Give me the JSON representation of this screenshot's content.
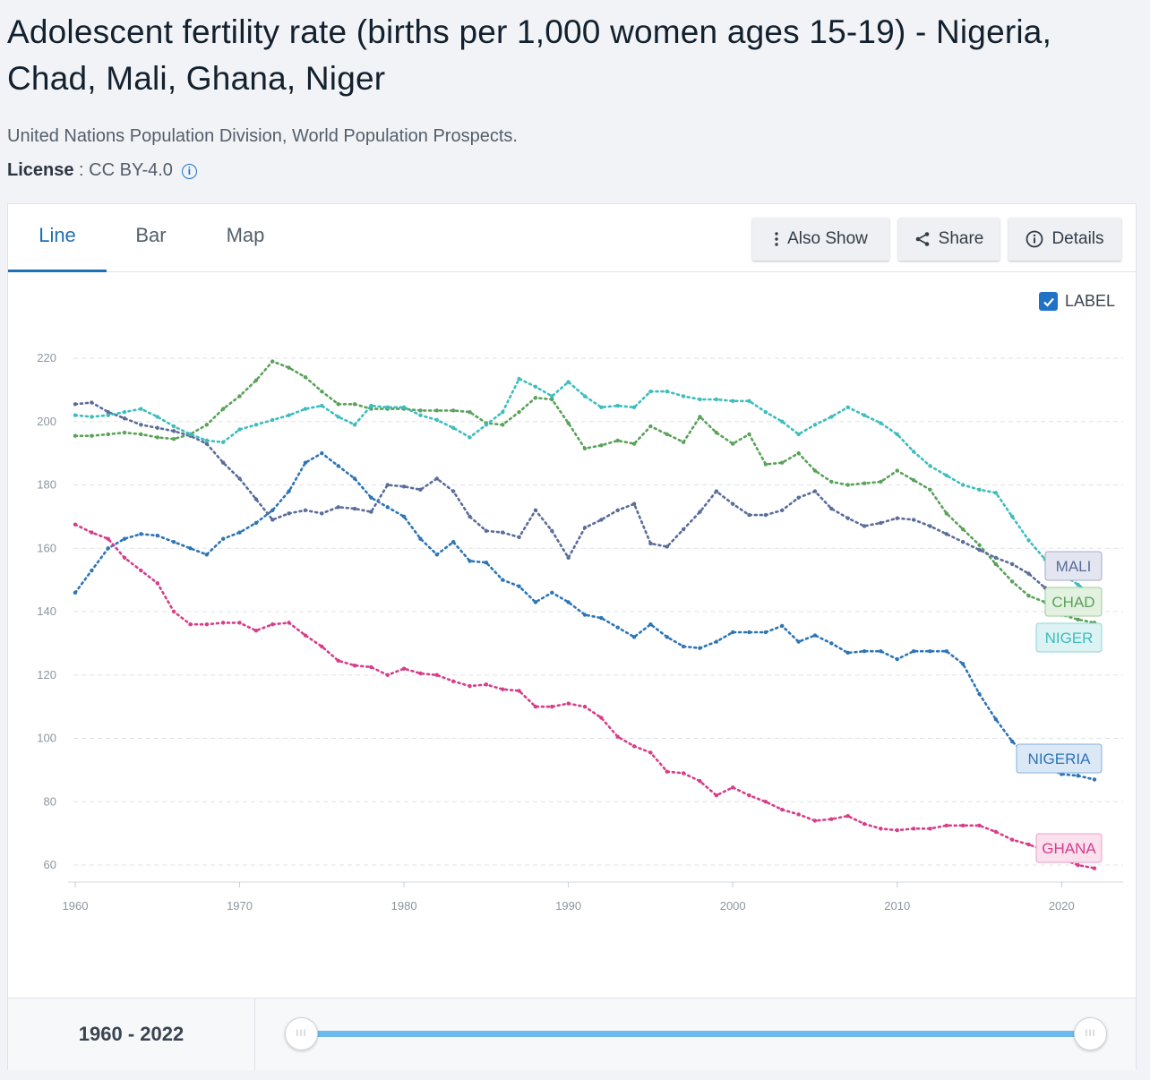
{
  "header": {
    "title": "Adolescent fertility rate (births per 1,000 women ages 15-19) - Nigeria, Chad, Mali, Ghana, Niger",
    "source": "United Nations Population Division, World Population Prospects.",
    "license_label": "License",
    "license_sep": " : ",
    "license_value": "CC BY-4.0"
  },
  "tabs": [
    {
      "label": "Line",
      "active": true
    },
    {
      "label": "Bar",
      "active": false
    },
    {
      "label": "Map",
      "active": false
    }
  ],
  "toolbar": {
    "also_show": "Also Show",
    "share": "Share",
    "details": "Details"
  },
  "label_toggle": {
    "text": "LABEL",
    "checked": true
  },
  "range": {
    "start": "1960",
    "end": "2022",
    "sep": " - "
  },
  "chart_data": {
    "type": "line",
    "title": "",
    "xlabel": "",
    "ylabel": "",
    "xlim": [
      1960,
      2022
    ],
    "ylim": [
      55,
      225
    ],
    "xticks": [
      1960,
      1970,
      1980,
      1990,
      2000,
      2010,
      2020
    ],
    "yticks": [
      60,
      80,
      100,
      120,
      140,
      160,
      180,
      200,
      220
    ],
    "grid": true,
    "line_style": "dotted",
    "series": [
      {
        "name": "NIGERIA",
        "color": "#2e75b6",
        "x": [
          1960,
          1961,
          1962,
          1963,
          1964,
          1965,
          1966,
          1967,
          1968,
          1969,
          1970,
          1971,
          1972,
          1973,
          1974,
          1975,
          1976,
          1977,
          1978,
          1979,
          1980,
          1981,
          1982,
          1983,
          1984,
          1985,
          1986,
          1987,
          1988,
          1989,
          1990,
          1991,
          1992,
          1993,
          1994,
          1995,
          1996,
          1997,
          1998,
          1999,
          2000,
          2001,
          2002,
          2003,
          2004,
          2005,
          2006,
          2007,
          2008,
          2009,
          2010,
          2011,
          2012,
          2013,
          2014,
          2015,
          2016,
          2017,
          2018,
          2019,
          2020,
          2021,
          2022
        ],
        "values": [
          146,
          153,
          160,
          163,
          164.5,
          164,
          162,
          160,
          158,
          163,
          165,
          168,
          172,
          178,
          187,
          190,
          186,
          182,
          176,
          173,
          170,
          163,
          158,
          162,
          156,
          155.5,
          150,
          148,
          143,
          146,
          143,
          139,
          138,
          135,
          132,
          136,
          132,
          129,
          128.5,
          130.5,
          133.5,
          133.5,
          133.5,
          135.5,
          130.5,
          132.5,
          130,
          127,
          127.5,
          127.5,
          125,
          127.5,
          127.5,
          127.5,
          123.5,
          114,
          106,
          99,
          94,
          91,
          88.7,
          88.2,
          87
        ]
      },
      {
        "name": "CHAD",
        "color": "#5aa25a",
        "x": [
          1960,
          1961,
          1962,
          1963,
          1964,
          1965,
          1966,
          1967,
          1968,
          1969,
          1970,
          1971,
          1972,
          1973,
          1974,
          1975,
          1976,
          1977,
          1978,
          1979,
          1980,
          1981,
          1982,
          1983,
          1984,
          1985,
          1986,
          1987,
          1988,
          1989,
          1990,
          1991,
          1992,
          1993,
          1994,
          1995,
          1996,
          1997,
          1998,
          1999,
          2000,
          2001,
          2002,
          2003,
          2004,
          2005,
          2006,
          2007,
          2008,
          2009,
          2010,
          2011,
          2012,
          2013,
          2014,
          2015,
          2016,
          2017,
          2018,
          2019,
          2020,
          2021,
          2022
        ],
        "values": [
          195.5,
          195.5,
          196,
          196.5,
          196,
          195,
          194.5,
          196,
          199,
          204,
          208,
          213,
          219,
          217,
          214,
          209.5,
          205.5,
          205.5,
          204,
          204,
          204,
          203.5,
          203.5,
          203.5,
          203,
          199.5,
          199,
          203,
          207.5,
          207,
          199.5,
          191.5,
          192.5,
          194,
          193,
          198.5,
          196,
          193.5,
          201.5,
          196.5,
          193,
          196,
          186.5,
          187,
          190,
          184.5,
          181,
          180,
          180.5,
          181,
          184.5,
          181.5,
          178.5,
          171,
          166,
          161,
          155,
          149.5,
          145,
          143,
          139,
          137.5,
          136.5
        ]
      },
      {
        "name": "MALI",
        "color": "#5a6c99",
        "x": [
          1960,
          1961,
          1962,
          1963,
          1964,
          1965,
          1966,
          1967,
          1968,
          1969,
          1970,
          1971,
          1972,
          1973,
          1974,
          1975,
          1976,
          1977,
          1978,
          1979,
          1980,
          1981,
          1982,
          1983,
          1984,
          1985,
          1986,
          1987,
          1988,
          1989,
          1990,
          1991,
          1992,
          1993,
          1994,
          1995,
          1996,
          1997,
          1998,
          1999,
          2000,
          2001,
          2002,
          2003,
          2004,
          2005,
          2006,
          2007,
          2008,
          2009,
          2010,
          2011,
          2012,
          2013,
          2014,
          2015,
          2016,
          2017,
          2018,
          2019,
          2020,
          2021,
          2022
        ],
        "values": [
          205.5,
          206,
          203,
          201,
          199,
          198,
          197,
          195.5,
          193,
          187,
          182,
          175.5,
          169,
          171,
          172,
          171,
          173,
          172.5,
          171.5,
          180,
          179.5,
          178.5,
          182,
          178,
          170,
          165.5,
          165,
          163.5,
          172,
          165.5,
          157,
          166.5,
          169,
          172,
          174,
          161.5,
          160.5,
          166,
          171.5,
          178,
          174,
          170.5,
          170.5,
          172,
          176,
          178,
          172.5,
          169.5,
          167,
          168,
          169.5,
          169,
          167,
          164.5,
          162,
          159.5,
          157,
          155,
          152,
          147.5,
          144,
          143,
          142
        ]
      },
      {
        "name": "GHANA",
        "color": "#d63d8a",
        "x": [
          1960,
          1961,
          1962,
          1963,
          1964,
          1965,
          1966,
          1967,
          1968,
          1969,
          1970,
          1971,
          1972,
          1973,
          1974,
          1975,
          1976,
          1977,
          1978,
          1979,
          1980,
          1981,
          1982,
          1983,
          1984,
          1985,
          1986,
          1987,
          1988,
          1989,
          1990,
          1991,
          1992,
          1993,
          1994,
          1995,
          1996,
          1997,
          1998,
          1999,
          2000,
          2001,
          2002,
          2003,
          2004,
          2005,
          2006,
          2007,
          2008,
          2009,
          2010,
          2011,
          2012,
          2013,
          2014,
          2015,
          2016,
          2017,
          2018,
          2019,
          2020,
          2021,
          2022
        ],
        "values": [
          167.5,
          165,
          163,
          157,
          153,
          149,
          140,
          136,
          136,
          136.5,
          136.5,
          134,
          136,
          136.5,
          132.5,
          129,
          124.5,
          123,
          122.5,
          120,
          122,
          120.5,
          120,
          118,
          116.5,
          117,
          115.5,
          115,
          110,
          110,
          111,
          110,
          106.5,
          100.5,
          97.5,
          95.5,
          89.5,
          89,
          86.5,
          82,
          84.5,
          82,
          80,
          77.5,
          76,
          74,
          74.5,
          75.5,
          73,
          71.5,
          71,
          71.5,
          71.5,
          72.5,
          72.5,
          72.5,
          70.5,
          68,
          66.5,
          64.5,
          62,
          60,
          59
        ]
      },
      {
        "name": "NIGER",
        "color": "#3dbdbd",
        "x": [
          1960,
          1961,
          1962,
          1963,
          1964,
          1965,
          1966,
          1967,
          1968,
          1969,
          1970,
          1971,
          1972,
          1973,
          1974,
          1975,
          1976,
          1977,
          1978,
          1979,
          1980,
          1981,
          1982,
          1983,
          1984,
          1985,
          1986,
          1987,
          1988,
          1989,
          1990,
          1991,
          1992,
          1993,
          1994,
          1995,
          1996,
          1997,
          1998,
          1999,
          2000,
          2001,
          2002,
          2003,
          2004,
          2005,
          2006,
          2007,
          2008,
          2009,
          2010,
          2011,
          2012,
          2013,
          2014,
          2015,
          2016,
          2017,
          2018,
          2019,
          2020,
          2021,
          2022
        ],
        "values": [
          202,
          201.5,
          202,
          203,
          204,
          201.5,
          198.5,
          196,
          194,
          193.5,
          197.5,
          199,
          200.5,
          202,
          204,
          205,
          201.5,
          199,
          205,
          204.5,
          204.5,
          202,
          200.5,
          198,
          195,
          199,
          203,
          213.5,
          211,
          208,
          212.5,
          208,
          204.5,
          205,
          204.5,
          209.5,
          209.5,
          208,
          207,
          207,
          206.5,
          206.5,
          203,
          200,
          196,
          199,
          201.5,
          204.5,
          202,
          199.5,
          196,
          190.5,
          186,
          183,
          180,
          178.5,
          177.5,
          170,
          162.5,
          156.5,
          152,
          148.5,
          145
        ]
      }
    ]
  }
}
